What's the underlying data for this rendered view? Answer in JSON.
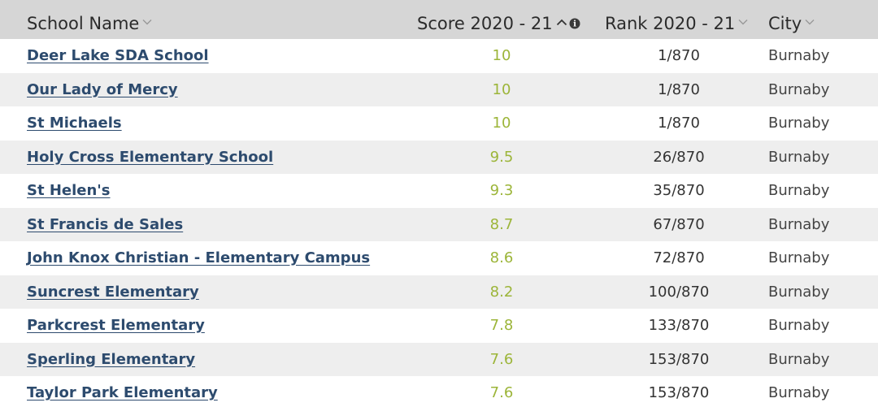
{
  "header": {
    "school_name": "School Name",
    "score": "Score 2020 - 21",
    "rank": "Rank 2020 - 21",
    "city": "City"
  },
  "icons": {
    "sort_chevron": "chevron-down-icon",
    "sort_asc": "chevron-up-icon",
    "info": "info-icon"
  },
  "colors": {
    "header_bg": "#d6d6d6",
    "link": "#2d4b6e",
    "score": "#9cb539",
    "row_alt": "#eeeeee"
  },
  "rows": [
    {
      "name": "Deer Lake SDA School",
      "score": "10",
      "rank": "1/870",
      "city": "Burnaby"
    },
    {
      "name": "Our Lady of Mercy",
      "score": "10",
      "rank": "1/870",
      "city": "Burnaby"
    },
    {
      "name": "St Michaels",
      "score": "10",
      "rank": "1/870",
      "city": "Burnaby"
    },
    {
      "name": "Holy Cross Elementary School",
      "score": "9.5",
      "rank": "26/870",
      "city": "Burnaby"
    },
    {
      "name": "St Helen's",
      "score": "9.3",
      "rank": "35/870",
      "city": "Burnaby"
    },
    {
      "name": "St Francis de Sales",
      "score": "8.7",
      "rank": "67/870",
      "city": "Burnaby"
    },
    {
      "name": "John Knox Christian - Elementary Campus",
      "score": "8.6",
      "rank": "72/870",
      "city": "Burnaby"
    },
    {
      "name": "Suncrest Elementary",
      "score": "8.2",
      "rank": "100/870",
      "city": "Burnaby"
    },
    {
      "name": "Parkcrest Elementary",
      "score": "7.8",
      "rank": "133/870",
      "city": "Burnaby"
    },
    {
      "name": "Sperling Elementary",
      "score": "7.6",
      "rank": "153/870",
      "city": "Burnaby"
    },
    {
      "name": "Taylor Park Elementary",
      "score": "7.6",
      "rank": "153/870",
      "city": "Burnaby"
    }
  ]
}
